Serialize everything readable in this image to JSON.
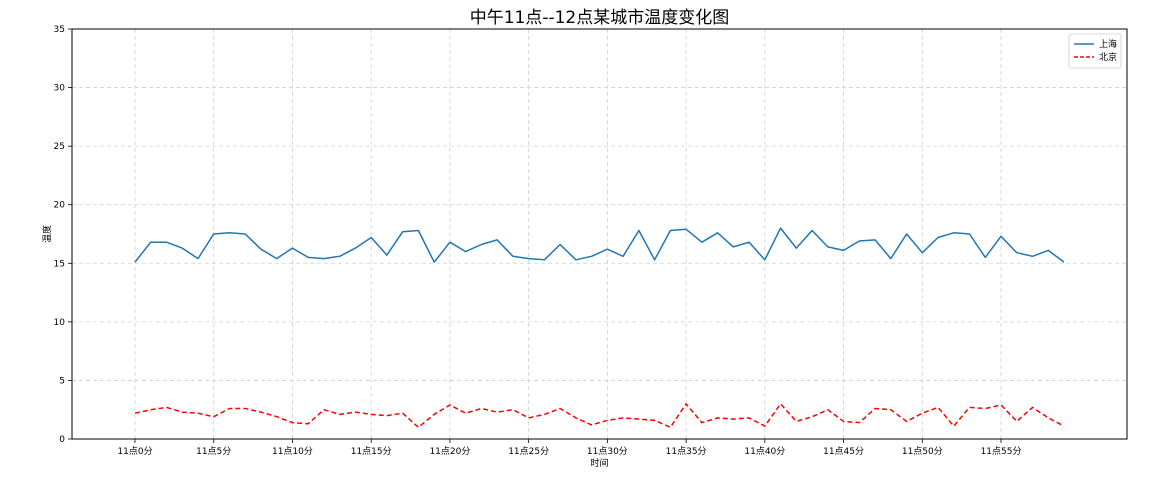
{
  "chart_data": {
    "type": "line",
    "title": "中午11点--12点某城市温度变化图",
    "xlabel": "时间",
    "ylabel": "温度",
    "ylim": [
      0,
      35
    ],
    "yticks": [
      0,
      5,
      10,
      15,
      20,
      25,
      30,
      35
    ],
    "xtick_labels": [
      "11点0分",
      "11点5分",
      "11点10分",
      "11点15分",
      "11点20分",
      "11点25分",
      "11点30分",
      "11点35分",
      "11点40分",
      "11点45分",
      "11点50分",
      "11点55分"
    ],
    "x": [
      0,
      1,
      2,
      3,
      4,
      5,
      6,
      7,
      8,
      9,
      10,
      11,
      12,
      13,
      14,
      15,
      16,
      17,
      18,
      19,
      20,
      21,
      22,
      23,
      24,
      25,
      26,
      27,
      28,
      29,
      30,
      31,
      32,
      33,
      34,
      35,
      36,
      37,
      38,
      39,
      40,
      41,
      42,
      43,
      44,
      45,
      46,
      47,
      48,
      49,
      50,
      51,
      52,
      53,
      54,
      55,
      56,
      57,
      58,
      59
    ],
    "grid": true,
    "legend_position": "top-right",
    "series": [
      {
        "name": "上海",
        "color": "#1f77b4",
        "style": "solid",
        "values": [
          15.1,
          16.8,
          16.8,
          16.3,
          15.4,
          17.5,
          17.6,
          17.5,
          16.2,
          15.4,
          16.3,
          15.5,
          15.4,
          15.6,
          16.3,
          17.2,
          15.7,
          17.7,
          17.8,
          15.1,
          16.8,
          16.0,
          16.6,
          17.0,
          15.6,
          15.4,
          15.3,
          16.6,
          15.3,
          15.6,
          16.2,
          15.6,
          17.8,
          15.3,
          17.8,
          17.9,
          16.8,
          17.6,
          16.4,
          16.8,
          15.3,
          18.0,
          16.3,
          17.8,
          16.4,
          16.1,
          16.9,
          17.0,
          15.4,
          17.5,
          15.9,
          17.2,
          17.6,
          17.5,
          15.5,
          17.3,
          15.9,
          15.6,
          16.1,
          15.1
        ]
      },
      {
        "name": "北京",
        "color": "#ff0000",
        "style": "dashed",
        "values": [
          2.2,
          2.5,
          2.7,
          2.3,
          2.2,
          1.9,
          2.6,
          2.6,
          2.3,
          1.9,
          1.4,
          1.3,
          2.5,
          2.1,
          2.3,
          2.1,
          2.0,
          2.2,
          1.0,
          2.1,
          2.9,
          2.2,
          2.6,
          2.3,
          2.5,
          1.8,
          2.1,
          2.6,
          1.8,
          1.2,
          1.6,
          1.8,
          1.7,
          1.6,
          1.0,
          3.0,
          1.4,
          1.8,
          1.7,
          1.8,
          1.1,
          3.0,
          1.5,
          1.9,
          2.5,
          1.5,
          1.4,
          2.6,
          2.5,
          1.5,
          2.2,
          2.7,
          1.1,
          2.7,
          2.6,
          2.9,
          1.5,
          2.7,
          1.8,
          1.1
        ]
      }
    ]
  }
}
